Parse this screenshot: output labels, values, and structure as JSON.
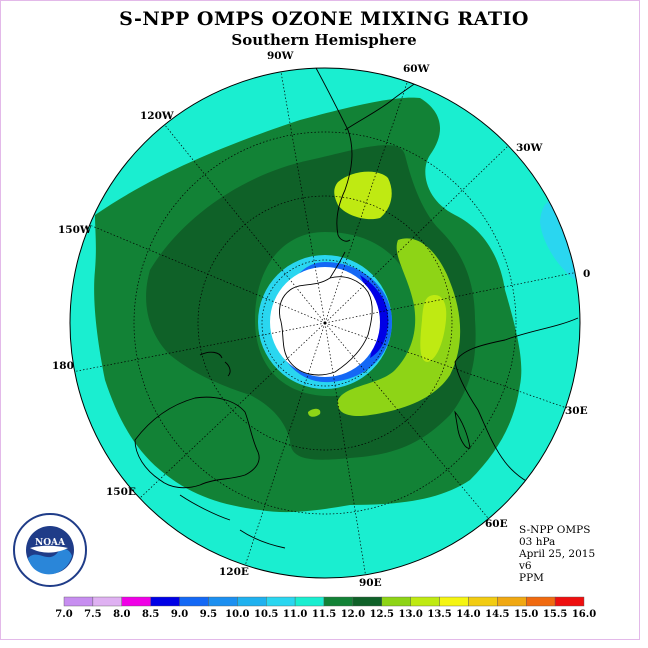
{
  "title": "S-NPP OMPS OZONE MIXING RATIO",
  "subtitle": "Southern Hemisphere",
  "longitude_labels": [
    "90W",
    "60W",
    "120W",
    "30W",
    "150W",
    "0",
    "180",
    "30E",
    "150E",
    "60E",
    "120E",
    "90E"
  ],
  "info": {
    "instrument": "S-NPP OMPS",
    "level": "03 hPa",
    "date": "April 25, 2015",
    "version": "v6",
    "units": "PPM"
  },
  "colorbar": {
    "ticks": [
      "7.0",
      "7.5",
      "8.0",
      "8.5",
      "9.0",
      "9.5",
      "10.0",
      "10.5",
      "11.0",
      "11.5",
      "12.0",
      "12.5",
      "13.0",
      "13.5",
      "14.0",
      "14.5",
      "15.0",
      "15.5",
      "16.0"
    ],
    "colors": [
      "#c78ef0",
      "#dfb1f2",
      "#f000e6",
      "#0000e6",
      "#1468f5",
      "#1c8ff0",
      "#1fb1ef",
      "#2ad6f0",
      "#1aeed0",
      "#128236",
      "#0f6128",
      "#8ed416",
      "#bfea12",
      "#f5f512",
      "#f2cc12",
      "#f0a812",
      "#f06a10",
      "#ee0f0f",
      "#7a4a32"
    ]
  },
  "logo": {
    "name": "noaa-logo",
    "text": "NOAA"
  },
  "colors": {
    "background_ring": "#1aeed0",
    "low_band": "#2ad6f0",
    "mid_green": "#128236",
    "dark_green": "#0f6128",
    "lime": "#8ed416",
    "yellow_green": "#bfea12",
    "blue": "#1468f5",
    "deep_blue": "#0000e6",
    "pole": "#ffffff"
  }
}
